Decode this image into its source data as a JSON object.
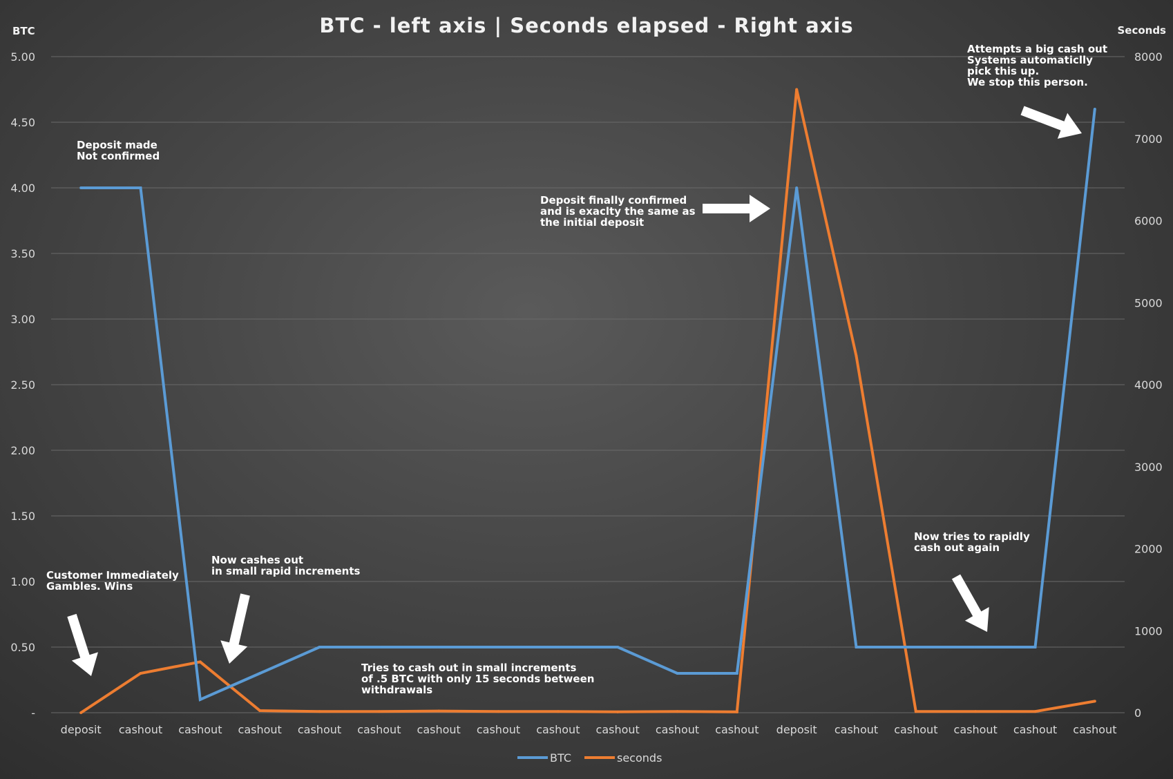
{
  "chart_data": {
    "type": "line",
    "title": "BTC - left axis | Seconds elapsed - Right axis",
    "ylabel": "BTC",
    "y2label": "Seconds",
    "ylim": [
      0,
      5
    ],
    "y2lim": [
      0,
      8000
    ],
    "y_ticks": [
      {
        "value": 0,
        "label": "-"
      },
      {
        "value": 0.5,
        "label": "0.50"
      },
      {
        "value": 1.0,
        "label": "1.00"
      },
      {
        "value": 1.5,
        "label": "1.50"
      },
      {
        "value": 2.0,
        "label": "2.00"
      },
      {
        "value": 2.5,
        "label": "2.50"
      },
      {
        "value": 3.0,
        "label": "3.00"
      },
      {
        "value": 3.5,
        "label": "3.50"
      },
      {
        "value": 4.0,
        "label": "4.00"
      },
      {
        "value": 4.5,
        "label": "4.50"
      },
      {
        "value": 5.0,
        "label": "5.00"
      }
    ],
    "y2_ticks": [
      {
        "value": 0,
        "label": "0"
      },
      {
        "value": 1000,
        "label": "1000"
      },
      {
        "value": 2000,
        "label": "2000"
      },
      {
        "value": 3000,
        "label": "3000"
      },
      {
        "value": 4000,
        "label": "4000"
      },
      {
        "value": 5000,
        "label": "5000"
      },
      {
        "value": 6000,
        "label": "6000"
      },
      {
        "value": 7000,
        "label": "7000"
      },
      {
        "value": 8000,
        "label": "8000"
      }
    ],
    "categories": [
      "deposit",
      "cashout",
      "cashout",
      "cashout",
      "cashout",
      "cashout",
      "cashout",
      "cashout",
      "cashout",
      "cashout",
      "cashout",
      "cashout",
      "deposit",
      "cashout",
      "cashout",
      "cashout",
      "cashout",
      "cashout"
    ],
    "series": [
      {
        "name": "BTC",
        "axis": "left",
        "color": "#5b9bd5",
        "values": [
          4.0,
          4.0,
          0.1,
          0.3,
          0.5,
          0.5,
          0.5,
          0.5,
          0.5,
          0.5,
          0.3,
          0.3,
          4.0,
          0.5,
          0.5,
          0.5,
          0.5,
          4.6
        ]
      },
      {
        "name": "seconds",
        "axis": "right",
        "color": "#ed7d31",
        "values": [
          0,
          480,
          620,
          25,
          15,
          15,
          20,
          15,
          15,
          10,
          15,
          10,
          7600,
          4350,
          15,
          15,
          15,
          140
        ]
      }
    ],
    "legend": "bottom",
    "grid": true,
    "annotations": [
      {
        "id": "deposit-made",
        "lines": [
          "Deposit made",
          "Not confirmed"
        ]
      },
      {
        "id": "customer-gambles",
        "lines": [
          "Customer Immediately",
          "Gambles. Wins"
        ]
      },
      {
        "id": "cashes-out-small",
        "lines": [
          "Now cashes out",
          "in small rapid increments"
        ]
      },
      {
        "id": "tries-cash-out",
        "lines": [
          "Tries to cash out in small increments",
          "of .5 BTC with only 15 seconds between",
          "withdrawals"
        ]
      },
      {
        "id": "deposit-confirmed",
        "lines": [
          "Deposit finally confirmed",
          "and is exaclty the same as",
          "the initial deposit"
        ]
      },
      {
        "id": "rapid-cash-out-again",
        "lines": [
          "Now tries to rapidly",
          "cash out again"
        ]
      },
      {
        "id": "big-cash-out",
        "lines": [
          "Attempts a big cash out",
          "Systems automaticlly",
          "pick this up.",
          "We stop this person."
        ]
      }
    ]
  }
}
